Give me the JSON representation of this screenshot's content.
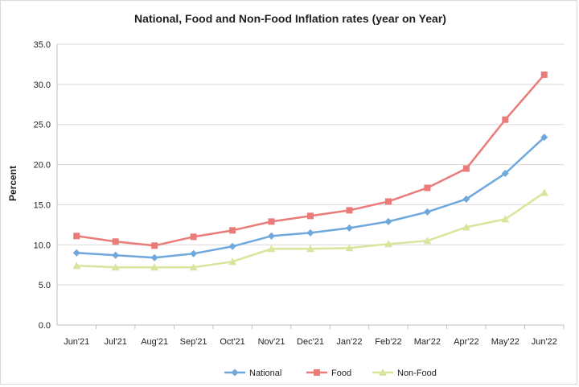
{
  "chart_data": {
    "type": "line",
    "title": "National, Food and Non-Food Inflation rates (year on Year)",
    "xlabel": "",
    "ylabel": "Percent",
    "ylim": [
      0,
      35
    ],
    "yticks": [
      "0.0",
      "5.0",
      "10.0",
      "15.0",
      "20.0",
      "25.0",
      "30.0",
      "35.0"
    ],
    "grid": true,
    "legend_position": "bottom",
    "categories": [
      "Jun'21",
      "Jul'21",
      "Aug'21",
      "Sep'21",
      "Oct'21",
      "Nov'21",
      "Dec'21",
      "Jan'22",
      "Feb'22",
      "Mar'22",
      "Apr'22",
      "May'22",
      "Jun'22"
    ],
    "series": [
      {
        "name": "National",
        "color": "#6fa8dc",
        "marker": "diamond",
        "values": [
          9.0,
          8.7,
          8.4,
          8.9,
          9.8,
          11.1,
          11.5,
          12.1,
          12.9,
          14.1,
          15.7,
          18.9,
          23.4
        ]
      },
      {
        "name": "Food",
        "color": "#ea7b78",
        "marker": "square",
        "values": [
          11.1,
          10.4,
          9.9,
          11.0,
          11.8,
          12.9,
          13.6,
          14.3,
          15.4,
          17.1,
          19.5,
          25.6,
          31.2
        ]
      },
      {
        "name": "Non-Food",
        "color": "#d9e59d",
        "marker": "triangle",
        "values": [
          7.4,
          7.2,
          7.2,
          7.2,
          7.9,
          9.5,
          9.5,
          9.6,
          10.1,
          10.5,
          12.2,
          13.2,
          16.5
        ]
      }
    ]
  }
}
